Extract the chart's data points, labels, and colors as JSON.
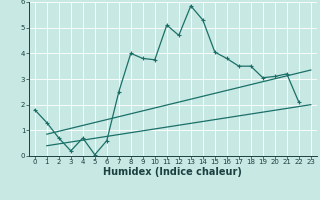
{
  "xlabel": "Humidex (Indice chaleur)",
  "xlim": [
    -0.5,
    23.5
  ],
  "ylim": [
    0,
    6
  ],
  "xticks": [
    0,
    1,
    2,
    3,
    4,
    5,
    6,
    7,
    8,
    9,
    10,
    11,
    12,
    13,
    14,
    15,
    16,
    17,
    18,
    19,
    20,
    21,
    22,
    23
  ],
  "yticks": [
    0,
    1,
    2,
    3,
    4,
    5,
    6
  ],
  "background_color": "#c8e8e4",
  "grid_color": "#ffffff",
  "line_color": "#1a7068",
  "main_x": [
    0,
    1,
    2,
    3,
    4,
    5,
    6,
    7,
    8,
    9,
    10,
    11,
    12,
    13,
    14,
    15,
    16,
    17,
    18,
    19,
    20,
    21,
    22
  ],
  "main_y": [
    1.8,
    1.3,
    0.7,
    0.2,
    0.7,
    0.05,
    0.6,
    2.5,
    4.0,
    3.8,
    3.75,
    5.1,
    4.7,
    5.85,
    5.3,
    4.05,
    3.8,
    3.5,
    3.5,
    3.05,
    3.1,
    3.2,
    2.1
  ],
  "trend1_x": [
    1,
    23
  ],
  "trend1_y": [
    0.85,
    3.35
  ],
  "trend2_x": [
    1,
    23
  ],
  "trend2_y": [
    0.4,
    2.0
  ],
  "xlabel_fontsize": 7,
  "tick_fontsize": 5,
  "line_width": 0.9,
  "marker_size": 3
}
